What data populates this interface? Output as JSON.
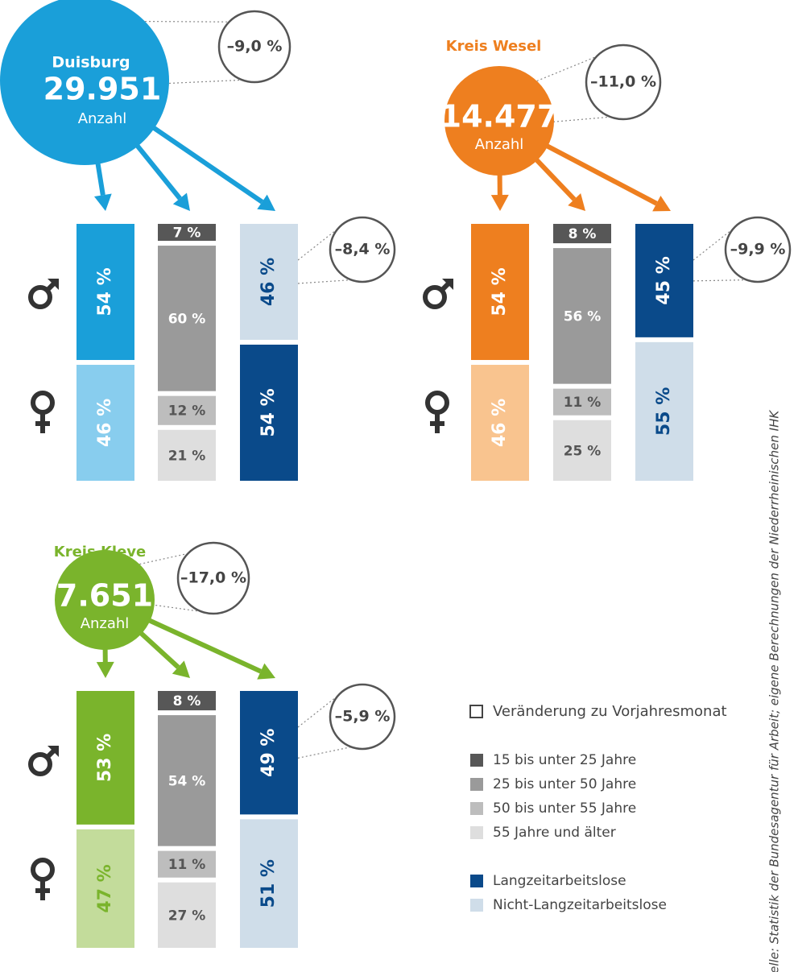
{
  "regions": [
    {
      "name": "Duisburg",
      "total": "29.951",
      "unit": "Anzahl",
      "change": "–9,0 %",
      "color": "#1a9fd9",
      "light": "#88cdee",
      "text_on_light": "#ffffff",
      "gender": [
        {
          "value": 54,
          "label": "54 %"
        },
        {
          "value": 46,
          "label": "46 %"
        }
      ],
      "age": [
        {
          "value": 7,
          "label": "7 %"
        },
        {
          "value": 60,
          "label": "60 %"
        },
        {
          "value": 12,
          "label": "12 %"
        },
        {
          "value": 21,
          "label": "21 %"
        }
      ],
      "duration": [
        {
          "value": 46,
          "label": "46 %",
          "long": false
        },
        {
          "value": 54,
          "label": "54 %",
          "long": true
        }
      ],
      "duration_change": "–8,4 %"
    },
    {
      "name": "Kreis Wesel",
      "total": "14.477",
      "unit": "Anzahl",
      "change": "–11,0 %",
      "color": "#ee7f1f",
      "light": "#f9c48f",
      "text_on_light": "#ffffff",
      "gender": [
        {
          "value": 54,
          "label": "54 %"
        },
        {
          "value": 46,
          "label": "46 %"
        }
      ],
      "age": [
        {
          "value": 8,
          "label": "8 %"
        },
        {
          "value": 56,
          "label": "56 %"
        },
        {
          "value": 11,
          "label": "11 %"
        },
        {
          "value": 25,
          "label": "25 %"
        }
      ],
      "duration": [
        {
          "value": 45,
          "label": "45 %",
          "long": true
        },
        {
          "value": 55,
          "label": "55 %",
          "long": false
        }
      ],
      "duration_change": "–9,9 %"
    },
    {
      "name": "Kreis Kleve",
      "total": "7.651",
      "unit": "Anzahl",
      "change": "–17,0 %",
      "color": "#7ab42c",
      "light": "#c3dc9b",
      "text_on_light": "#7ab42c",
      "gender": [
        {
          "value": 53,
          "label": "53 %"
        },
        {
          "value": 47,
          "label": "47 %"
        }
      ],
      "age": [
        {
          "value": 8,
          "label": "8 %"
        },
        {
          "value": 54,
          "label": "54 %"
        },
        {
          "value": 11,
          "label": "11 %"
        },
        {
          "value": 27,
          "label": "27 %"
        }
      ],
      "duration": [
        {
          "value": 49,
          "label": "49 %",
          "long": true
        },
        {
          "value": 51,
          "label": "51 %",
          "long": false
        }
      ],
      "duration_change": "–5,9 %"
    }
  ],
  "legend": {
    "change": "Veränderung zu Vorjahresmonat",
    "age": [
      "15 bis unter 25 Jahre",
      "25 bis unter 50 Jahre",
      "50 bis unter 55 Jahre",
      "55 Jahre und älter"
    ],
    "duration": [
      "Langzeitarbeitslose",
      "Nicht-Langzeitarbeitslose"
    ]
  },
  "source": "Quelle: Statistik der Bundesagentur für Arbeit; eigene Berechnungen der Niederrheinischen IHK"
}
